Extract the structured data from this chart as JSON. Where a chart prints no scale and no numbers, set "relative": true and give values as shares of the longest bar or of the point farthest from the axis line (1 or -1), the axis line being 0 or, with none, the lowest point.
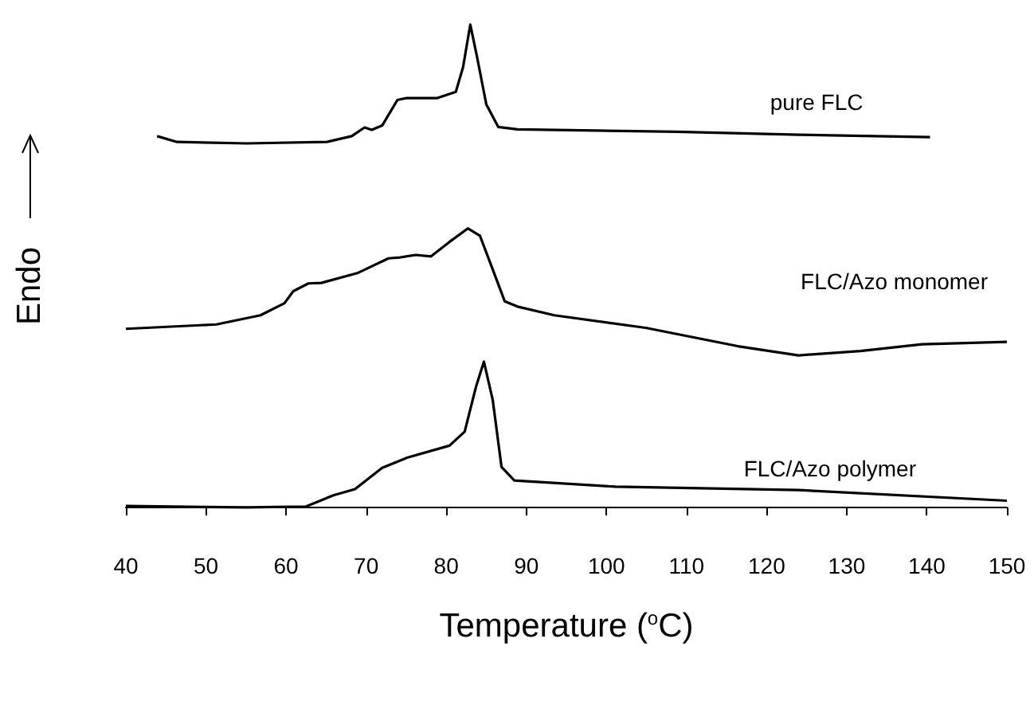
{
  "chart_data": {
    "type": "line",
    "relative": true,
    "xlabel": "Temperature ($^{o}$C)",
    "ylabel": "Endo",
    "xlim": [
      40,
      150
    ],
    "xticks": [
      40,
      50,
      60,
      70,
      80,
      90,
      100,
      110,
      120,
      130,
      140,
      150
    ],
    "grid": false,
    "legend": false,
    "marker": "none",
    "line_style": "solid",
    "series": [
      {
        "name": "pure FLC",
        "color": "#000000",
        "x": [
          43.9,
          46.4,
          55.1,
          65.1,
          68.2,
          69.8,
          70.7,
          72.0,
          73.9,
          75.1,
          78.9,
          81.2,
          82.1,
          83.0,
          83.8,
          85.0,
          86.5,
          88.9,
          108.7,
          124.0,
          140.4
        ],
        "values": [
          0.769,
          0.757,
          0.754,
          0.757,
          0.769,
          0.787,
          0.782,
          0.791,
          0.844,
          0.848,
          0.848,
          0.861,
          0.912,
          1.0,
          0.937,
          0.835,
          0.788,
          0.783,
          0.778,
          0.772,
          0.767
        ]
      },
      {
        "name": "FLC/Azo monomer",
        "color": "#000000",
        "x": [
          40,
          51.3,
          56.8,
          59.8,
          60.9,
          62.8,
          64.4,
          69.0,
          72.8,
          74.3,
          76.2,
          78.1,
          80.4,
          82.7,
          84.2,
          85.8,
          87.3,
          88.9,
          93.5,
          104.9,
          116.4,
          124.0,
          131.7,
          139.4,
          150
        ],
        "values": [
          0.37,
          0.379,
          0.398,
          0.423,
          0.448,
          0.464,
          0.465,
          0.486,
          0.516,
          0.518,
          0.523,
          0.52,
          0.55,
          0.578,
          0.563,
          0.493,
          0.427,
          0.416,
          0.398,
          0.372,
          0.334,
          0.315,
          0.324,
          0.338,
          0.343
        ]
      },
      {
        "name": "FLC/Azo polymer",
        "color": "#000000",
        "x": [
          40,
          55.2,
          62.5,
          65.9,
          68.6,
          72.0,
          75.1,
          80.4,
          82.3,
          83.7,
          84.7,
          85.8,
          86.9,
          88.5,
          101.1,
          124.0,
          150
        ],
        "values": [
          0.003,
          0,
          0.002,
          0.025,
          0.038,
          0.082,
          0.103,
          0.128,
          0.157,
          0.249,
          0.302,
          0.223,
          0.084,
          0.056,
          0.043,
          0.036,
          0.014
        ]
      }
    ]
  }
}
